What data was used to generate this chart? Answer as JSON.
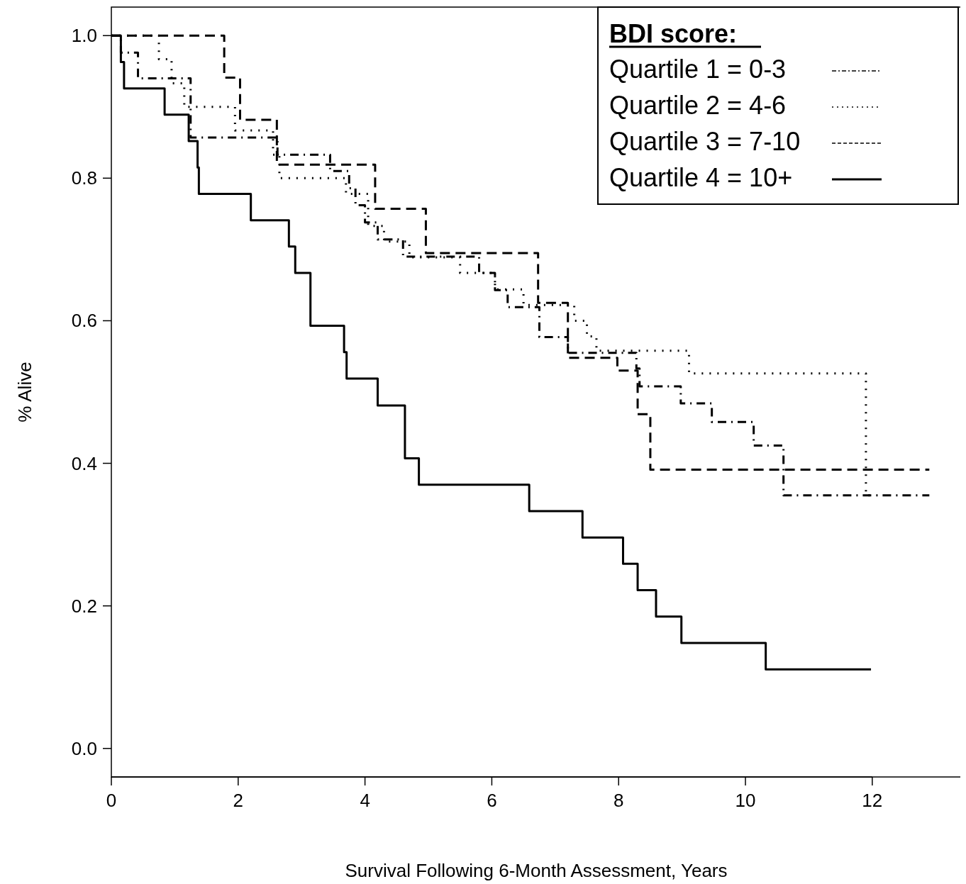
{
  "chart_data": {
    "type": "step",
    "xlabel": "Survival Following 6-Month Assessment, Years",
    "ylabel": "% Alive",
    "legend_title": "BDI score:",
    "legend": "top right",
    "grid": false,
    "xlim": [
      0,
      13.4
    ],
    "ylim": [
      -0.04,
      1.04
    ],
    "xticks": [
      0,
      2,
      4,
      6,
      8,
      10,
      12
    ],
    "yticks": [
      {
        "value": 0,
        "label": "0.0"
      },
      {
        "value": 0.2,
        "label": "0.2"
      },
      {
        "value": 0.4,
        "label": "0.4"
      },
      {
        "value": 0.6,
        "label": "0.6"
      },
      {
        "value": 0.8,
        "label": "0.8"
      },
      {
        "value": 1,
        "label": "1.0"
      }
    ],
    "series": [
      {
        "name": "Quartile 1 = 0-3",
        "color": "#000000",
        "line_style": "dashdot",
        "x": [
          0,
          0.15,
          0.42,
          1.25,
          2.62,
          3.45,
          3.75,
          3.85,
          4.0,
          4.2,
          4.6,
          5.8,
          6.05,
          6.25,
          6.75,
          7.2,
          8.28,
          8.33,
          8.98,
          9.47,
          10.13,
          10.6,
          12.9
        ],
        "values": [
          1,
          0.976,
          0.94,
          0.857,
          0.833,
          0.81,
          0.786,
          0.762,
          0.738,
          0.714,
          0.69,
          0.667,
          0.643,
          0.619,
          0.577,
          0.555,
          0.533,
          0.508,
          0.484,
          0.458,
          0.425,
          0.355,
          0.355
        ]
      },
      {
        "name": "Quartile 2 = 4-6",
        "color": "#000000",
        "line_style": "dotted",
        "x": [
          0,
          0.75,
          0.95,
          1.15,
          1.95,
          2.55,
          2.65,
          3.7,
          4.05,
          4.3,
          4.7,
          5.5,
          6.05,
          6.5,
          7.3,
          7.5,
          7.65,
          9.11,
          11.9,
          12.0
        ],
        "values": [
          1,
          0.967,
          0.933,
          0.9,
          0.867,
          0.833,
          0.8,
          0.778,
          0.733,
          0.711,
          0.689,
          0.667,
          0.644,
          0.622,
          0.6,
          0.578,
          0.558,
          0.526,
          0.355,
          0.355
        ]
      },
      {
        "name": "Quartile 3 = 7-10",
        "color": "#000000",
        "line_style": "dashed",
        "x": [
          0,
          1.78,
          2.03,
          2.61,
          4.16,
          4.96,
          6.73,
          7.2,
          7.98,
          8.3,
          8.5,
          12.9
        ],
        "values": [
          1,
          0.941,
          0.882,
          0.819,
          0.757,
          0.695,
          0.625,
          0.548,
          0.53,
          0.469,
          0.391,
          0.391
        ]
      },
      {
        "name": "Quartile 4 = 10+",
        "color": "#000000",
        "line_style": "solid",
        "x": [
          0,
          0.15,
          0.2,
          0.84,
          1.22,
          1.36,
          1.38,
          2.2,
          2.8,
          2.9,
          3.14,
          3.67,
          3.71,
          4.2,
          4.63,
          4.85,
          6.59,
          7.43,
          8.07,
          8.3,
          8.59,
          8.99,
          10.32,
          11.98
        ],
        "values": [
          1,
          0.963,
          0.926,
          0.889,
          0.852,
          0.815,
          0.778,
          0.741,
          0.704,
          0.667,
          0.593,
          0.556,
          0.519,
          0.481,
          0.407,
          0.37,
          0.333,
          0.296,
          0.259,
          0.222,
          0.185,
          0.148,
          0.111,
          0.111
        ]
      }
    ]
  }
}
